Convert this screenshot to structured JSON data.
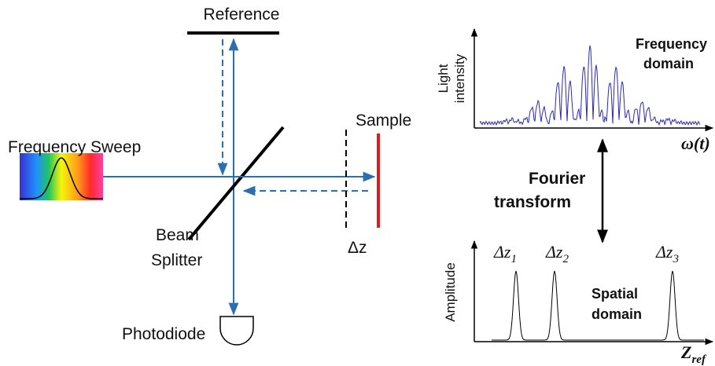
{
  "labels": {
    "reference": "Reference",
    "frequency_sweep": "Frequency Sweep",
    "sample": "Sample",
    "beam_splitter": [
      "Beam",
      "Splitter"
    ],
    "photodiode": "Photodiode",
    "delta_z": "Δz",
    "light_intensity": [
      "Light",
      "intensity"
    ],
    "frequency_domain": [
      "Frequency",
      "domain"
    ],
    "omega": "ω(t)",
    "fourier_transform": [
      "Fourier",
      "transform"
    ],
    "amplitude": "Amplitude",
    "peaks": [
      {
        "base": "Δz",
        "sub": "1"
      },
      {
        "base": "Δz",
        "sub": "2"
      },
      {
        "base": "Δz",
        "sub": "3"
      }
    ],
    "spatial_domain": [
      "Spatial",
      "domain"
    ],
    "z_ref": {
      "base": "Z",
      "sub": "ref"
    }
  }
}
